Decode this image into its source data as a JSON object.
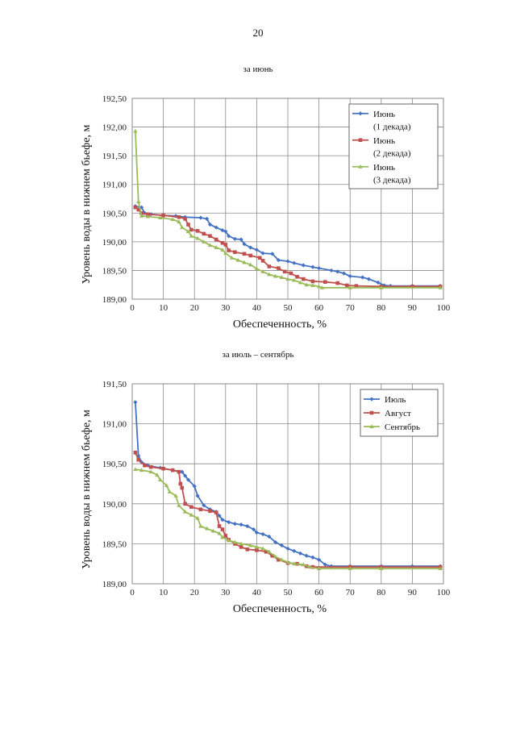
{
  "page_number": "20",
  "chart_data": [
    {
      "type": "line",
      "caption": "за июнь",
      "xlabel": "Обеспеченность, %",
      "ylabel": "Уровень воды в нижнем бьефе, м",
      "xlim": [
        0,
        100
      ],
      "ylim": [
        189.0,
        192.5
      ],
      "xticks": [
        0,
        10,
        20,
        30,
        40,
        50,
        60,
        70,
        80,
        90,
        100
      ],
      "xtick_labels": [
        "0",
        "10",
        "20",
        "30",
        "40",
        "50",
        "60",
        "70",
        "80",
        "90",
        "100"
      ],
      "yticks": [
        189.0,
        189.5,
        190.0,
        190.5,
        191.0,
        191.5,
        192.0,
        192.5
      ],
      "ytick_labels": [
        "189,00",
        "189,50",
        "190,00",
        "190,50",
        "191,00",
        "191,50",
        "192,00",
        "192,50"
      ],
      "grid": true,
      "legend_position": "top-right",
      "series": [
        {
          "name_lines": [
            "Июнь",
            "(1 декада)"
          ],
          "color": "#4472C4",
          "marker": "diamond",
          "points": [
            [
              1,
              190.62
            ],
            [
              3,
              190.6
            ],
            [
              4,
              190.5
            ],
            [
              6,
              190.48
            ],
            [
              10,
              190.46
            ],
            [
              14,
              190.45
            ],
            [
              17,
              190.43
            ],
            [
              22,
              190.42
            ],
            [
              24,
              190.4
            ],
            [
              25,
              190.3
            ],
            [
              27,
              190.25
            ],
            [
              29,
              190.2
            ],
            [
              30,
              190.18
            ],
            [
              31,
              190.1
            ],
            [
              33,
              190.05
            ],
            [
              35,
              190.04
            ],
            [
              36,
              189.96
            ],
            [
              38,
              189.9
            ],
            [
              40,
              189.86
            ],
            [
              42,
              189.8
            ],
            [
              45,
              189.79
            ],
            [
              47,
              189.68
            ],
            [
              50,
              189.66
            ],
            [
              52,
              189.63
            ],
            [
              55,
              189.59
            ],
            [
              58,
              189.56
            ],
            [
              60,
              189.54
            ],
            [
              64,
              189.5
            ],
            [
              66,
              189.48
            ],
            [
              68,
              189.45
            ],
            [
              70,
              189.4
            ],
            [
              74,
              189.38
            ],
            [
              76,
              189.35
            ],
            [
              79,
              189.29
            ],
            [
              81,
              189.24
            ],
            [
              83,
              189.23
            ],
            [
              90,
              189.23
            ],
            [
              99,
              189.23
            ]
          ]
        },
        {
          "name_lines": [
            "Июнь",
            "(2 декада)"
          ],
          "color": "#C0504D",
          "marker": "square",
          "points": [
            [
              1,
              190.6
            ],
            [
              2,
              190.56
            ],
            [
              3,
              190.5
            ],
            [
              5,
              190.48
            ],
            [
              10,
              190.46
            ],
            [
              15,
              190.43
            ],
            [
              17,
              190.4
            ],
            [
              18,
              190.3
            ],
            [
              19,
              190.21
            ],
            [
              21,
              190.19
            ],
            [
              23,
              190.14
            ],
            [
              25,
              190.1
            ],
            [
              27,
              190.04
            ],
            [
              29,
              189.98
            ],
            [
              30,
              189.95
            ],
            [
              31,
              189.85
            ],
            [
              33,
              189.82
            ],
            [
              36,
              189.79
            ],
            [
              38,
              189.76
            ],
            [
              41,
              189.72
            ],
            [
              42,
              189.67
            ],
            [
              44,
              189.57
            ],
            [
              47,
              189.54
            ],
            [
              49,
              189.48
            ],
            [
              51,
              189.45
            ],
            [
              53,
              189.39
            ],
            [
              55,
              189.35
            ],
            [
              58,
              189.31
            ],
            [
              62,
              189.3
            ],
            [
              66,
              189.28
            ],
            [
              69,
              189.24
            ],
            [
              72,
              189.23
            ],
            [
              80,
              189.22
            ],
            [
              90,
              189.22
            ],
            [
              99,
              189.22
            ]
          ]
        },
        {
          "name_lines": [
            "Июнь",
            "(3 декада)"
          ],
          "color": "#9BBB59",
          "marker": "triangle",
          "points": [
            [
              1,
              191.93
            ],
            [
              2,
              190.7
            ],
            [
              3,
              190.45
            ],
            [
              5,
              190.44
            ],
            [
              9,
              190.42
            ],
            [
              13,
              190.39
            ],
            [
              15,
              190.35
            ],
            [
              16,
              190.25
            ],
            [
              18,
              190.18
            ],
            [
              19,
              190.1
            ],
            [
              21,
              190.06
            ],
            [
              23,
              190.0
            ],
            [
              25,
              189.94
            ],
            [
              27,
              189.9
            ],
            [
              29,
              189.86
            ],
            [
              30,
              189.8
            ],
            [
              32,
              189.72
            ],
            [
              34,
              189.68
            ],
            [
              36,
              189.64
            ],
            [
              38,
              189.6
            ],
            [
              40,
              189.53
            ],
            [
              42,
              189.48
            ],
            [
              44,
              189.43
            ],
            [
              46,
              189.4
            ],
            [
              48,
              189.38
            ],
            [
              50,
              189.35
            ],
            [
              52,
              189.33
            ],
            [
              54,
              189.29
            ],
            [
              56,
              189.25
            ],
            [
              58,
              189.24
            ],
            [
              60,
              189.22
            ],
            [
              61,
              189.2
            ],
            [
              70,
              189.2
            ],
            [
              80,
              189.2
            ],
            [
              99,
              189.2
            ]
          ]
        }
      ]
    },
    {
      "type": "line",
      "caption": "за июль – сентябрь",
      "xlabel": "Обеспеченность, %",
      "ylabel": "Уровень воды в нижнем бьефе, м",
      "xlim": [
        0,
        100
      ],
      "ylim": [
        189.0,
        191.5
      ],
      "xticks": [
        0,
        10,
        20,
        30,
        40,
        50,
        60,
        70,
        80,
        90,
        100
      ],
      "xtick_labels": [
        "0",
        "10",
        "20",
        "30",
        "40",
        "50",
        "60",
        "70",
        "80",
        "90",
        "100"
      ],
      "yticks": [
        189.0,
        189.5,
        190.0,
        190.5,
        191.0,
        191.5
      ],
      "ytick_labels": [
        "189,00",
        "189,50",
        "190,00",
        "190,50",
        "191,00",
        "191,50"
      ],
      "grid": true,
      "legend_position": "top-right",
      "series": [
        {
          "name_lines": [
            "Июль"
          ],
          "color": "#4472C4",
          "marker": "diamond",
          "points": [
            [
              1,
              191.27
            ],
            [
              2,
              190.6
            ],
            [
              3,
              190.52
            ],
            [
              5,
              190.48
            ],
            [
              9,
              190.45
            ],
            [
              13,
              190.42
            ],
            [
              16,
              190.4
            ],
            [
              17,
              190.35
            ],
            [
              18,
              190.3
            ],
            [
              20,
              190.22
            ],
            [
              21,
              190.1
            ],
            [
              23,
              189.98
            ],
            [
              25,
              189.93
            ],
            [
              27,
              189.9
            ],
            [
              28,
              189.85
            ],
            [
              29,
              189.8
            ],
            [
              31,
              189.77
            ],
            [
              33,
              189.75
            ],
            [
              35,
              189.74
            ],
            [
              37,
              189.72
            ],
            [
              39,
              189.68
            ],
            [
              40,
              189.64
            ],
            [
              42,
              189.62
            ],
            [
              44,
              189.59
            ],
            [
              46,
              189.52
            ],
            [
              48,
              189.48
            ],
            [
              50,
              189.44
            ],
            [
              52,
              189.41
            ],
            [
              54,
              189.38
            ],
            [
              56,
              189.35
            ],
            [
              58,
              189.33
            ],
            [
              60,
              189.3
            ],
            [
              62,
              189.24
            ],
            [
              64,
              189.22
            ],
            [
              70,
              189.22
            ],
            [
              80,
              189.22
            ],
            [
              90,
              189.22
            ],
            [
              99,
              189.22
            ]
          ]
        },
        {
          "name_lines": [
            "Август"
          ],
          "color": "#C0504D",
          "marker": "square",
          "points": [
            [
              1,
              190.64
            ],
            [
              2,
              190.55
            ],
            [
              4,
              190.48
            ],
            [
              6,
              190.46
            ],
            [
              10,
              190.44
            ],
            [
              13,
              190.42
            ],
            [
              15,
              190.4
            ],
            [
              15.5,
              190.25
            ],
            [
              16,
              190.2
            ],
            [
              17,
              190.0
            ],
            [
              19,
              189.96
            ],
            [
              22,
              189.93
            ],
            [
              25,
              189.91
            ],
            [
              27,
              189.89
            ],
            [
              28,
              189.72
            ],
            [
              29,
              189.68
            ],
            [
              30,
              189.6
            ],
            [
              31,
              189.55
            ],
            [
              33,
              189.5
            ],
            [
              35,
              189.46
            ],
            [
              37,
              189.43
            ],
            [
              40,
              189.42
            ],
            [
              43,
              189.4
            ],
            [
              45,
              189.35
            ],
            [
              47,
              189.3
            ],
            [
              50,
              189.26
            ],
            [
              53,
              189.25
            ],
            [
              56,
              189.22
            ],
            [
              58,
              189.21
            ],
            [
              70,
              189.21
            ],
            [
              80,
              189.21
            ],
            [
              99,
              189.21
            ]
          ]
        },
        {
          "name_lines": [
            "Сентябрь"
          ],
          "color": "#9BBB59",
          "marker": "triangle",
          "points": [
            [
              1,
              190.43
            ],
            [
              3,
              190.42
            ],
            [
              6,
              190.4
            ],
            [
              8,
              190.36
            ],
            [
              9,
              190.3
            ],
            [
              11,
              190.23
            ],
            [
              12,
              190.15
            ],
            [
              14,
              190.1
            ],
            [
              15,
              189.98
            ],
            [
              17,
              189.9
            ],
            [
              19,
              189.86
            ],
            [
              21,
              189.82
            ],
            [
              22,
              189.72
            ],
            [
              24,
              189.69
            ],
            [
              26,
              189.66
            ],
            [
              28,
              189.63
            ],
            [
              29,
              189.58
            ],
            [
              31,
              189.54
            ],
            [
              33,
              189.52
            ],
            [
              35,
              189.5
            ],
            [
              38,
              189.48
            ],
            [
              40,
              189.46
            ],
            [
              42,
              189.44
            ],
            [
              44,
              189.4
            ],
            [
              46,
              189.34
            ],
            [
              48,
              189.3
            ],
            [
              50,
              189.27
            ],
            [
              52,
              189.25
            ],
            [
              55,
              189.24
            ],
            [
              57,
              189.21
            ],
            [
              60,
              189.19
            ],
            [
              70,
              189.19
            ],
            [
              80,
              189.19
            ],
            [
              99,
              189.19
            ]
          ]
        }
      ]
    }
  ]
}
